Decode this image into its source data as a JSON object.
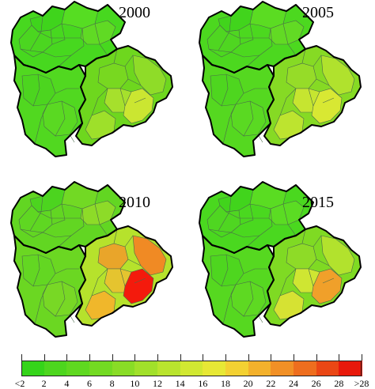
{
  "panels": [
    {
      "year": "2000",
      "colors": {
        "north": "#47d81f",
        "west": "#51d820",
        "east": "#6ed71e",
        "n1": "#3fd41c",
        "n2": "#56dd22",
        "n3": "#4bd620",
        "n4": "#60da24",
        "w1": "#4cd51f",
        "w2": "#5ad922",
        "e1": "#78d820",
        "e2": "#8fdc28",
        "e3": "#a6e02c",
        "e4": "#cbe631",
        "e5": "#9ee02a"
      }
    },
    {
      "year": "2005",
      "colors": {
        "north": "#4cd81f",
        "west": "#55d820",
        "east": "#86da24",
        "n1": "#41d41c",
        "n2": "#5bdc22",
        "n3": "#4fd621",
        "n4": "#62da24",
        "w1": "#4ed61f",
        "w2": "#5ad922",
        "e1": "#96dc28",
        "e2": "#b0e22d",
        "e3": "#c6e530",
        "e4": "#d8e833",
        "e5": "#bde42f"
      }
    },
    {
      "year": "2010",
      "colors": {
        "north": "#62d622",
        "west": "#6bd722",
        "east": "#b6e22c",
        "n1": "#4cd41f",
        "n2": "#72d924",
        "n3": "#5fd722",
        "n4": "#8ddb28",
        "w1": "#63d722",
        "w2": "#78d825",
        "e1": "#e9a52a",
        "e2": "#f08a24",
        "e3": "#e5c42f",
        "e4": "#f41a0c",
        "e5": "#f0b72b"
      }
    },
    {
      "year": "2015",
      "colors": {
        "north": "#4ad81f",
        "west": "#56d820",
        "east": "#7fda23",
        "n1": "#41d41c",
        "n2": "#5adc22",
        "n3": "#4fd621",
        "n4": "#5bdc23",
        "w1": "#4ed61f",
        "w2": "#5ed922",
        "e1": "#8edb27",
        "e2": "#b2e22d",
        "e3": "#cfe632",
        "e4": "#f0a02a",
        "e5": "#d6e233"
      }
    }
  ],
  "legend": {
    "labels": [
      "<2",
      "2",
      "4",
      "6",
      "8",
      "10",
      "12",
      "14",
      "16",
      "18",
      "20",
      "22",
      "24",
      "26",
      "28",
      ">28"
    ],
    "colors": [
      "#35d41a",
      "#4dd61e",
      "#5fd820",
      "#73da22",
      "#89dc26",
      "#a1e02a",
      "#b9e42e",
      "#d1e832",
      "#e7e835",
      "#f3d132",
      "#f3b12c",
      "#f19026",
      "#ee6e1e",
      "#ea4715",
      "#e8190b"
    ]
  }
}
